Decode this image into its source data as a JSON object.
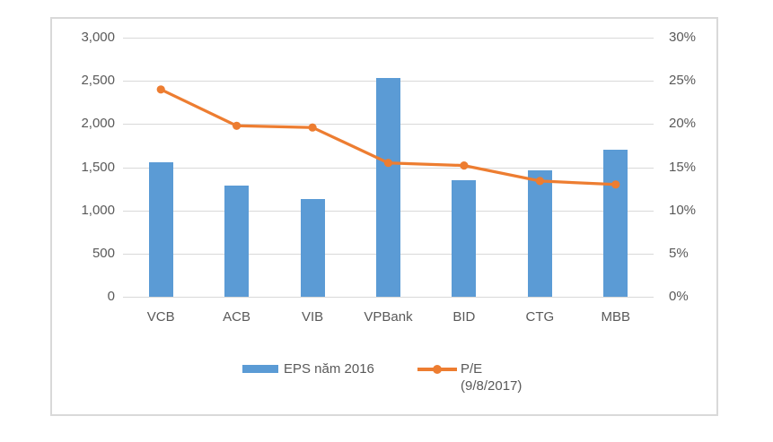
{
  "chart_data": {
    "type": "bar",
    "subtype": "combo-bar-line-dual-axis",
    "title": "",
    "categories": [
      "VCB",
      "ACB",
      "VIB",
      "VPBank",
      "BID",
      "CTG",
      "MBB"
    ],
    "series": [
      {
        "name": "EPS năm 2016",
        "type": "bar",
        "axis": "left",
        "values": [
          1560,
          1290,
          1130,
          2530,
          1350,
          1460,
          1700
        ]
      },
      {
        "name": "P/E (9/8/2017)",
        "type": "line",
        "axis": "right",
        "values": [
          24,
          19.8,
          19.6,
          15.5,
          15.2,
          13.4,
          13
        ]
      }
    ],
    "left_axis": {
      "min": 0,
      "max": 3000,
      "step": 500,
      "tick_labels": [
        "0",
        "500",
        "1,000",
        "1,500",
        "2,000",
        "2,500",
        "3,000"
      ]
    },
    "right_axis": {
      "min": 0,
      "max": 30,
      "step": 5,
      "tick_labels": [
        "0%",
        "5%",
        "10%",
        "15%",
        "20%",
        "25%",
        "30%"
      ]
    },
    "grid": true,
    "legend_position": "bottom",
    "legend": [
      {
        "label": "EPS năm 2016",
        "swatch": "bar"
      },
      {
        "label": "P/E",
        "sublabel": "(9/8/2017)",
        "swatch": "line-marker"
      }
    ]
  },
  "colors": {
    "bar": "#5B9BD5",
    "line": "#ED7D31",
    "grid": "#D9D9D9",
    "frame": "#D9D9D9",
    "text": "#595959",
    "background": "#FFFFFF"
  }
}
